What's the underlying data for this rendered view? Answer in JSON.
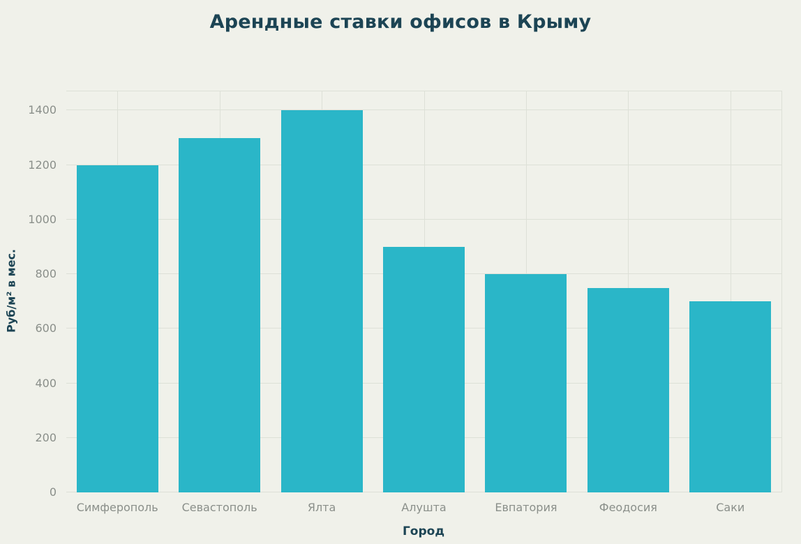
{
  "chart_data": {
    "type": "bar",
    "title": "Арендные ставки офисов в Крыму",
    "xlabel": "Город",
    "ylabel": "Руб/м² в мес.",
    "categories": [
      "Симферополь",
      "Севастополь",
      "Ялта",
      "Алушта",
      "Евпатория",
      "Феодосия",
      "Саки"
    ],
    "values": [
      1200,
      1300,
      1400,
      900,
      800,
      750,
      700
    ],
    "yticks": [
      0,
      200,
      400,
      600,
      800,
      1000,
      1200,
      1400
    ],
    "ylim": [
      0,
      1470
    ],
    "grid": true,
    "legend": "none",
    "colors": {
      "background": "#f0f1ea",
      "bar": "#2ab6c8",
      "title": "#1c4454",
      "axis_title": "#1c4454",
      "tick": "#8a8f8a",
      "grid": "#dde0d7"
    }
  }
}
